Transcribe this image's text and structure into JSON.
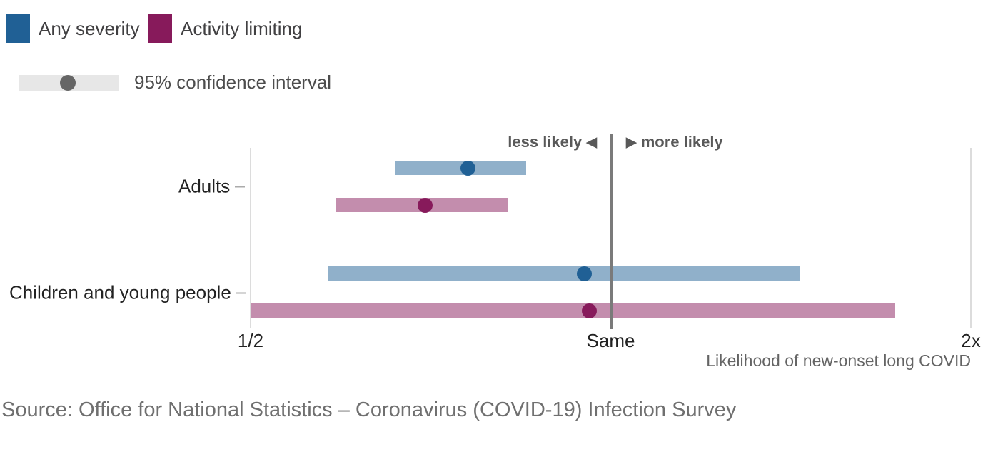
{
  "legend": {
    "series": [
      {
        "label": "Any severity",
        "color": "#206095",
        "bar_color": "#90b0ca"
      },
      {
        "label": "Activity limiting",
        "color": "#871a5b",
        "bar_color": "#c38dad"
      }
    ],
    "ci_label": "95% confidence interval",
    "ci_bar_color": "#e7e7e7",
    "ci_dot_color": "#666666"
  },
  "chart_data": {
    "type": "scatter",
    "subtype": "horizontal-dot-with-confidence-interval",
    "x_scale": "log2",
    "x_range": [
      0.5,
      2
    ],
    "x_ticks": [
      {
        "value": 0.5,
        "label": "1/2"
      },
      {
        "value": 1,
        "label": "Same"
      },
      {
        "value": 2,
        "label": "2x"
      }
    ],
    "xlabel": "Likelihood of new-onset long COVID",
    "reference_line_value": 1,
    "reference_line_color": "#7a7a7a",
    "axis_line_color": "#dcdcdc",
    "direction_labels": {
      "left": "less likely",
      "left_arrow": "◀",
      "right": "more likely",
      "right_arrow": "▶"
    },
    "categories": [
      "Adults",
      "Children and young people"
    ],
    "series": [
      {
        "name": "Any severity",
        "color": "#206095",
        "bar_color": "#90b0ca",
        "points": [
          {
            "category": "Adults",
            "estimate": 0.76,
            "ci_low": 0.66,
            "ci_high": 0.85
          },
          {
            "category": "Children and young people",
            "estimate": 0.95,
            "ci_low": 0.58,
            "ci_high": 1.44
          }
        ]
      },
      {
        "name": "Activity limiting",
        "color": "#871a5b",
        "bar_color": "#c38dad",
        "points": [
          {
            "category": "Adults",
            "estimate": 0.7,
            "ci_low": 0.59,
            "ci_high": 0.82
          },
          {
            "category": "Children and young people",
            "estimate": 0.96,
            "ci_low": 0.5,
            "ci_high": 1.73
          }
        ]
      }
    ],
    "legend_position": "top-left",
    "grid": false
  },
  "source": "Source: Office for National Statistics – Coronavirus (COVID-19) Infection Survey"
}
